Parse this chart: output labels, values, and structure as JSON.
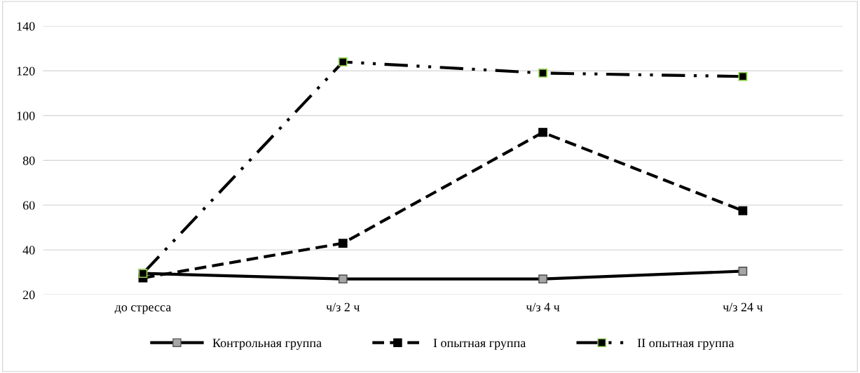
{
  "chart_data": {
    "type": "line",
    "categories": [
      "до стресса",
      "ч/з 2 ч",
      "ч/з 4 ч",
      "ч/з 24 ч"
    ],
    "series": [
      {
        "name": "Контрольная группа",
        "color": "#000000",
        "line_style": "solid",
        "values": [
          29.5,
          27,
          27,
          30.5
        ]
      },
      {
        "name": "I опытная группа",
        "color": "#000000",
        "line_style": "dashed",
        "values": [
          27.5,
          43,
          92.5,
          57.5
        ]
      },
      {
        "name": "II опытная группа",
        "color": "#000000",
        "line_style": "dashdot",
        "values": [
          29.5,
          124,
          119,
          117.5
        ]
      }
    ],
    "ylim": [
      20,
      140
    ],
    "yticks": [
      20,
      40,
      60,
      80,
      100,
      120,
      140
    ],
    "grid": "y",
    "legend": "bottom",
    "marker": "square"
  }
}
